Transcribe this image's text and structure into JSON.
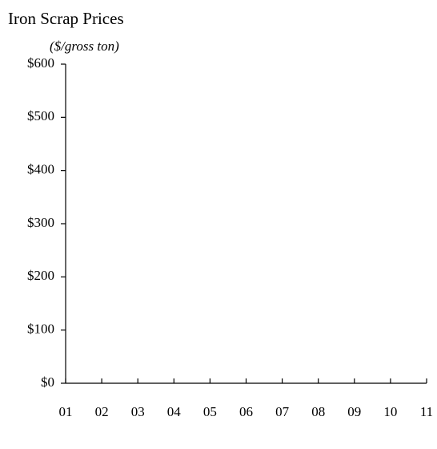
{
  "chart_data": {
    "type": "line",
    "title": "Iron Scrap Prices",
    "subtitle": "($/gross ton)",
    "categories": [
      "01",
      "02",
      "03",
      "04",
      "05",
      "06",
      "07",
      "08",
      "09",
      "10",
      "11"
    ],
    "ylim": [
      0,
      600
    ],
    "yticks": [
      {
        "value": 0,
        "label": "$0"
      },
      {
        "value": 100,
        "label": "$100"
      },
      {
        "value": 200,
        "label": "$200"
      },
      {
        "value": 300,
        "label": "$300"
      },
      {
        "value": 400,
        "label": "$400"
      },
      {
        "value": 500,
        "label": "$500"
      },
      {
        "value": 600,
        "label": "$600"
      }
    ]
  }
}
